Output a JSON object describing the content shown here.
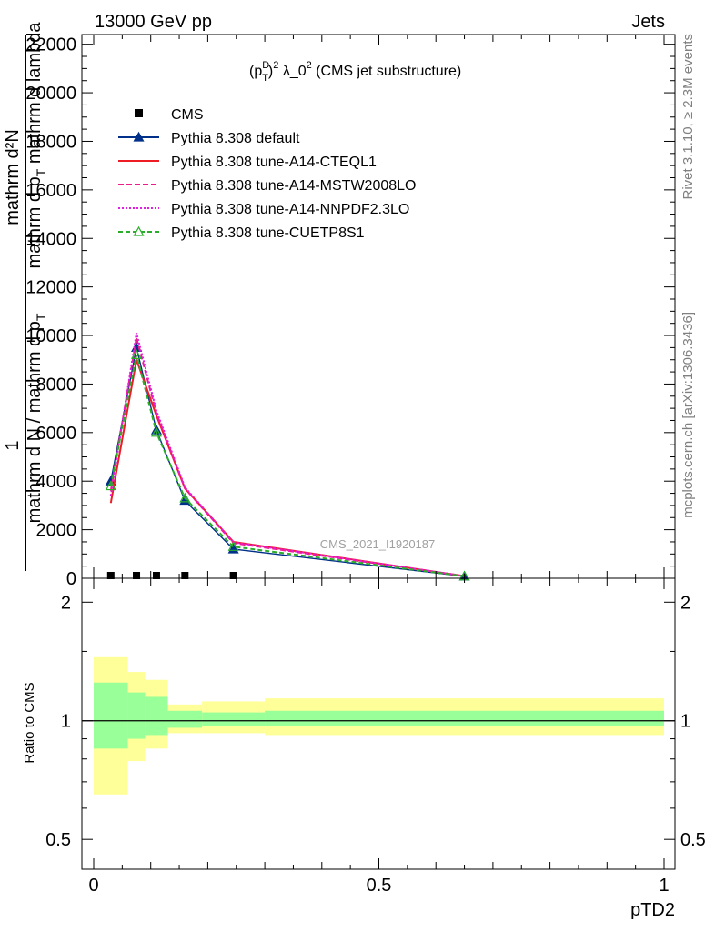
{
  "header": {
    "left": "13000 GeV pp",
    "right": "Jets"
  },
  "side_texts": {
    "rivet": "Rivet 3.1.10, ≥ 2.3M events",
    "mcplots": "mcplots.cern.ch [arXiv:1306.3436]"
  },
  "watermark": "CMS_2021_I1920187",
  "chart_data": {
    "type": "line",
    "title": {
      "p": "(p",
      "sup1": "D",
      "sub": "T",
      "paren": ")",
      "sup2": "2",
      "rest": " λ_0",
      "sup3": "2",
      "tail": " (CMS jet substructure)"
    },
    "xlabel": "pTD2",
    "ylabel_top": {
      "numerator": "mathrm d²N",
      "denominator_1": "mathrm d p",
      "denominator_sub": "T",
      "denominator_2": " mathrm d lambda"
    },
    "ylabel_bottom": {
      "numerator": "1",
      "denominator": "mathrm d N / mathrm d p",
      "denominator_sub": "T"
    },
    "ratio_ylabel": "Ratio to CMS",
    "xlim": [
      0,
      1
    ],
    "ylim": [
      0,
      22400
    ],
    "ratio_ylim": [
      0.42,
      2.3
    ],
    "x_ticks": [
      0,
      0.5,
      1
    ],
    "x_tick_labels": [
      "0",
      "0.5",
      "1"
    ],
    "y_ticks": [
      0,
      2000,
      4000,
      6000,
      8000,
      10000,
      12000,
      14000,
      16000,
      18000,
      20000,
      22000
    ],
    "y_tick_labels": [
      "0",
      "2000",
      "4000",
      "6000",
      "8000",
      "10000",
      "12000",
      "14000",
      "16000",
      "18000",
      "20000",
      "22000"
    ],
    "ratio_ticks": [
      0.5,
      1,
      2
    ],
    "ratio_tick_labels": [
      "0.5",
      "1",
      "2"
    ],
    "bin_edges": [
      0,
      0.06,
      0.09,
      0.13,
      0.19,
      0.3,
      1.0
    ],
    "x": [
      0.03,
      0.075,
      0.11,
      0.16,
      0.245,
      0.65
    ],
    "cms": {
      "name": "CMS",
      "values": [
        30,
        30,
        30,
        30,
        30,
        0
      ]
    },
    "ratio_band_inner": [
      [
        0.85,
        1.25
      ],
      [
        0.9,
        1.18
      ],
      [
        0.92,
        1.15
      ],
      [
        0.96,
        1.06
      ],
      [
        0.97,
        1.05
      ],
      [
        0.97,
        1.06
      ]
    ],
    "ratio_band_outer": [
      [
        0.65,
        1.45
      ],
      [
        0.79,
        1.33
      ],
      [
        0.85,
        1.27
      ],
      [
        0.93,
        1.1
      ],
      [
        0.93,
        1.12
      ],
      [
        0.92,
        1.14
      ]
    ],
    "series": [
      {
        "name": "Pythia 8.308 default",
        "color": "#00308a",
        "dash": "",
        "marker": "triangle-filled",
        "values": [
          4000,
          9500,
          6100,
          3200,
          1200,
          80
        ]
      },
      {
        "name": "Pythia 8.308 tune-A14-CTEQL1",
        "color": "#ee1c24",
        "dash": "",
        "marker": "none",
        "values": [
          3100,
          9000,
          6700,
          3700,
          1500,
          90
        ]
      },
      {
        "name": "Pythia 8.308 tune-A14-MSTW2008LO",
        "color": "#ee1c8a",
        "dash": "6,3",
        "marker": "none",
        "values": [
          3600,
          9900,
          6800,
          3700,
          1450,
          90
        ]
      },
      {
        "name": "Pythia 8.308 tune-A14-NNPDF2.3LO",
        "color": "#e21ce0",
        "dash": "2,2",
        "marker": "none",
        "values": [
          3400,
          10100,
          6900,
          3750,
          1480,
          95
        ]
      },
      {
        "name": "Pythia 8.308 tune-CUETP8S1",
        "color": "#2aae2a",
        "dash": "5,3",
        "marker": "triangle-open",
        "values": [
          3800,
          9200,
          6000,
          3300,
          1300,
          85
        ]
      }
    ],
    "legend_position": "top-left"
  }
}
